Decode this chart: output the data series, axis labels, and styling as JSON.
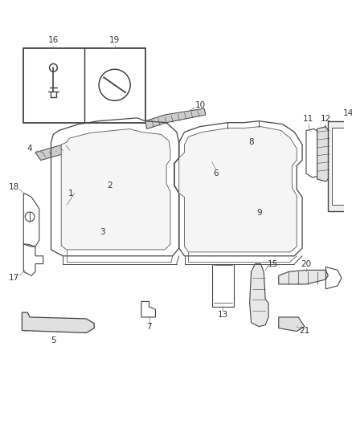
{
  "background_color": "#ffffff",
  "line_color": "#444444",
  "fig_width": 4.38,
  "fig_height": 5.33,
  "dpi": 100
}
